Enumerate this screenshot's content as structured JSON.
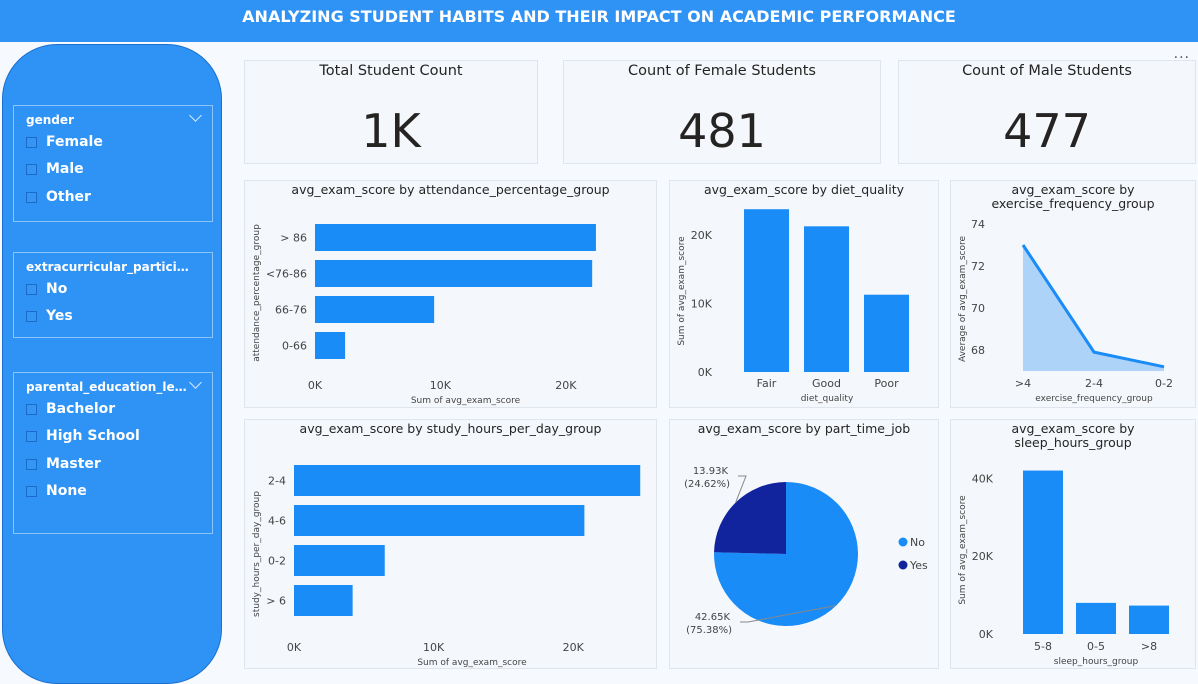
{
  "header": {
    "title": "ANALYZING STUDENT HABITS AND THEIR IMPACT ON ACADEMIC PERFORMANCE"
  },
  "slicers": [
    {
      "title": "gender",
      "items": [
        "Female",
        "Male",
        "Other"
      ]
    },
    {
      "title": "extracurricular_participation",
      "items": [
        "No",
        "Yes"
      ]
    },
    {
      "title": "parental_education_level",
      "items": [
        "Bachelor",
        "High School",
        "Master",
        "None"
      ]
    }
  ],
  "cards": [
    {
      "title": "Total Student Count",
      "value": "1K"
    },
    {
      "title": "Count of Female Students",
      "value": "481"
    },
    {
      "title": "Count of Male Students",
      "value": "477"
    }
  ],
  "more_options_icon": "ellipsis-icon",
  "colors": {
    "accent": "#2f93f5",
    "bar": "#1a8cf7",
    "dark": "#12239e",
    "area": "#aed3f8"
  },
  "chart_data": [
    {
      "id": "attendance",
      "type": "bar",
      "orientation": "horizontal",
      "title": "avg_exam_score by attendance_percentage_group",
      "categories": [
        "> 86",
        "<76-86",
        "66-76",
        "0-66"
      ],
      "values": [
        22400,
        22100,
        9500,
        2400
      ],
      "xlabel": "Sum of avg_exam_score",
      "ylabel": "attendance_percentage_group",
      "ticks": [
        0,
        10000,
        20000
      ],
      "tick_labels": [
        "0K",
        "10K",
        "20K"
      ],
      "xlim": [
        0,
        24000
      ]
    },
    {
      "id": "diet",
      "type": "bar",
      "orientation": "vertical",
      "title": "avg_exam_score by diet_quality",
      "categories": [
        "Fair",
        "Good",
        "Poor"
      ],
      "values": [
        23800,
        21300,
        11300
      ],
      "xlabel": "diet_quality",
      "ylabel": "Sum of avg_exam_score",
      "ticks": [
        0,
        10000,
        20000
      ],
      "tick_labels": [
        "0K",
        "10K",
        "20K"
      ],
      "ylim": [
        0,
        25000
      ]
    },
    {
      "id": "exercise",
      "type": "area",
      "title": "avg_exam_score by exercise_frequency_group",
      "title_lines": [
        "avg_exam_score by",
        "exercise_frequency_group"
      ],
      "categories": [
        ">4",
        "2-4",
        "0-2"
      ],
      "values": [
        73.0,
        67.9,
        67.2
      ],
      "xlabel": "exercise_frequency_group",
      "ylabel": "Average of avg_exam_score",
      "ticks": [
        68,
        70,
        72,
        74
      ],
      "tick_labels": [
        "68",
        "70",
        "72",
        "74"
      ],
      "ylim": [
        67,
        74
      ]
    },
    {
      "id": "study",
      "type": "bar",
      "orientation": "horizontal",
      "title": "avg_exam_score by study_hours_per_day_group",
      "categories": [
        "2-4",
        "4-6",
        "0-2",
        "> 6"
      ],
      "values": [
        24800,
        20800,
        6500,
        4200
      ],
      "xlabel": "Sum of avg_exam_score",
      "ylabel": "study_hours_per_day_group",
      "ticks": [
        0,
        10000,
        20000
      ],
      "tick_labels": [
        "0K",
        "10K",
        "20K"
      ],
      "xlim": [
        0,
        25500
      ]
    },
    {
      "id": "parttime",
      "type": "pie",
      "title": "avg_exam_score by part_time_job",
      "slices": [
        {
          "name": "No",
          "value": 42.65,
          "label": "42.65K",
          "pct": "(75.38%)"
        },
        {
          "name": "Yes",
          "value": 13.93,
          "label": "13.93K",
          "pct": "(24.62%)"
        }
      ],
      "legend": [
        "No",
        "Yes"
      ],
      "legend_position": "right"
    },
    {
      "id": "sleep",
      "type": "bar",
      "orientation": "vertical",
      "title": "avg_exam_score by sleep_hours_group",
      "title_lines": [
        "avg_exam_score by",
        "sleep_hours_group"
      ],
      "categories": [
        "5-8",
        "0-5",
        ">8"
      ],
      "values": [
        42000,
        8000,
        7300
      ],
      "xlabel": "sleep_hours_group",
      "ylabel": "Sum of avg_exam_score",
      "ticks": [
        0,
        20000,
        40000
      ],
      "tick_labels": [
        "0K",
        "20K",
        "40K"
      ],
      "ylim": [
        0,
        46000
      ]
    }
  ]
}
